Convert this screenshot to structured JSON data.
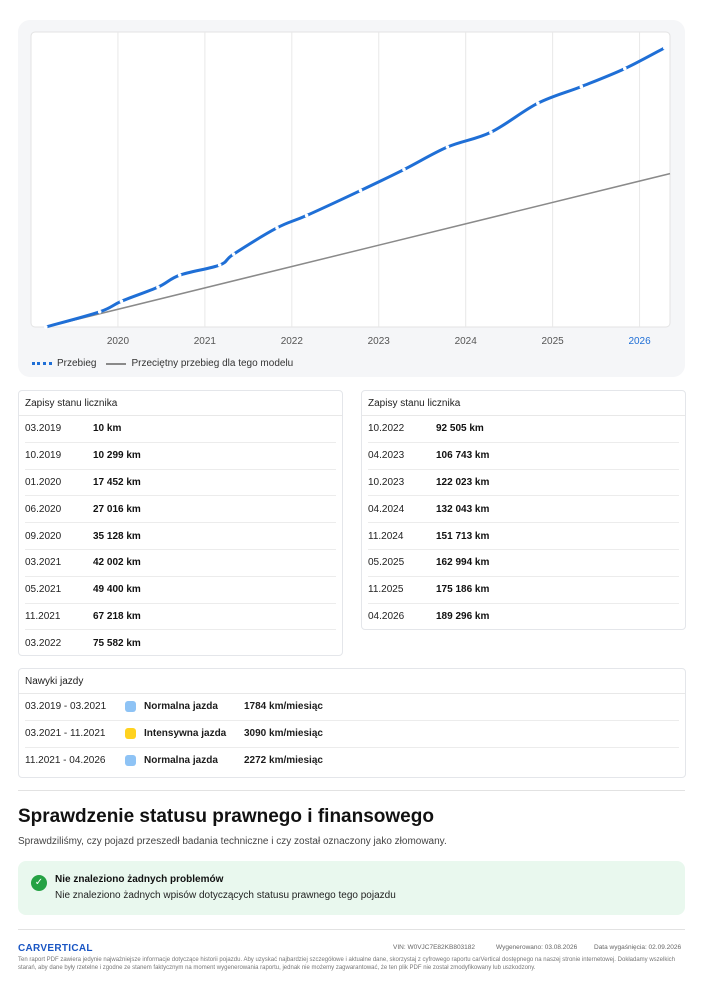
{
  "chart_data": {
    "type": "line",
    "x_ticks": [
      "2020",
      "2021",
      "2022",
      "2023",
      "2024",
      "2025",
      "2026"
    ],
    "highlighted_tick": "2026",
    "xlim": [
      2019.0,
      2026.35
    ],
    "ylim": [
      0,
      200000
    ],
    "grid": true,
    "series": [
      {
        "name": "Przebieg",
        "color": "#1f6fd6",
        "style": "dotted",
        "points": [
          [
            2019.17,
            10
          ],
          [
            2019.79,
            10299
          ],
          [
            2020.04,
            17452
          ],
          [
            2020.46,
            27016
          ],
          [
            2020.71,
            35128
          ],
          [
            2021.17,
            42002
          ],
          [
            2021.33,
            49400
          ],
          [
            2021.83,
            67218
          ],
          [
            2022.17,
            75582
          ],
          [
            2022.79,
            92505
          ],
          [
            2023.29,
            106743
          ],
          [
            2023.79,
            122023
          ],
          [
            2024.29,
            132043
          ],
          [
            2024.83,
            151713
          ],
          [
            2025.33,
            162994
          ],
          [
            2025.83,
            175186
          ],
          [
            2026.29,
            189296
          ]
        ]
      },
      {
        "name": "Przeciętny przebieg dla tego modelu",
        "color": "#8a8a8a",
        "style": "solid",
        "points": [
          [
            2019.17,
            0
          ],
          [
            2026.35,
            104000
          ]
        ]
      }
    ],
    "legend_position": "bottom-left"
  },
  "legend": {
    "series_1": "Przebieg",
    "series_2": "Przeciętny przebieg dla tego modelu"
  },
  "odometer_left": {
    "header": "Zapisy stanu licznika",
    "rows": [
      {
        "date": "03.2019",
        "km": "10 km"
      },
      {
        "date": "10.2019",
        "km": "10 299 km"
      },
      {
        "date": "01.2020",
        "km": "17 452 km"
      },
      {
        "date": "06.2020",
        "km": "27 016 km"
      },
      {
        "date": "09.2020",
        "km": "35 128 km"
      },
      {
        "date": "03.2021",
        "km": "42 002 km"
      },
      {
        "date": "05.2021",
        "km": "49 400 km"
      },
      {
        "date": "11.2021",
        "km": "67 218 km"
      },
      {
        "date": "03.2022",
        "km": "75 582 km"
      }
    ]
  },
  "odometer_right": {
    "header": "Zapisy stanu licznika",
    "rows": [
      {
        "date": "10.2022",
        "km": "92 505 km"
      },
      {
        "date": "04.2023",
        "km": "106 743 km"
      },
      {
        "date": "10.2023",
        "km": "122 023 km"
      },
      {
        "date": "04.2024",
        "km": "132 043 km"
      },
      {
        "date": "11.2024",
        "km": "151 713 km"
      },
      {
        "date": "05.2025",
        "km": "162 994 km"
      },
      {
        "date": "11.2025",
        "km": "175 186 km"
      },
      {
        "date": "04.2026",
        "km": "189 296 km"
      }
    ]
  },
  "habits": {
    "header": "Nawyki jazdy",
    "rows": [
      {
        "period": "03.2019 - 03.2021",
        "style": "Normalna jazda",
        "rate": "1784 km/miesiąc",
        "color": "#8ec3f5"
      },
      {
        "period": "03.2021 - 11.2021",
        "style": "Intensywna jazda",
        "rate": "3090 km/miesiąc",
        "color": "#ffd21f"
      },
      {
        "period": "11.2021 - 04.2026",
        "style": "Normalna jazda",
        "rate": "2272 km/miesiąc",
        "color": "#8ec3f5"
      }
    ]
  },
  "legal": {
    "title": "Sprawdzenie statusu prawnego i finansowego",
    "description": "Sprawdziliśmy, czy pojazd przeszedł badania techniczne i czy został oznaczony jako złomowany.",
    "status_title": "Nie znaleziono żadnych problemów",
    "status_text": "Nie znaleziono żadnych wpisów dotyczących statusu prawnego tego pojazdu",
    "status_color": "#25a244"
  },
  "footer": {
    "logo": "CARVERTICAL",
    "vin": "VIN: W0VJC7E82KB803182",
    "generated": "Wygenerowano: 03.08.2026",
    "expires": "Data wygaśnięcia: 02.09.2026",
    "disclaimer": "Ten raport PDF zawiera jedynie najważniejsze informacje dotyczące historii pojazdu. Aby uzyskać najbardziej szczegółowe i aktualne dane, skorzystaj z cyfrowego raportu carVertical dostępnego na naszej stronie internetowej. Dokładamy wszelkich starań, aby dane były rzetelne i zgodne ze stanem faktycznym na moment wygenerowania raportu, jednak nie możemy zagwarantować, że ten plik PDF nie został zmodyfikowany lub uszkodzony."
  }
}
